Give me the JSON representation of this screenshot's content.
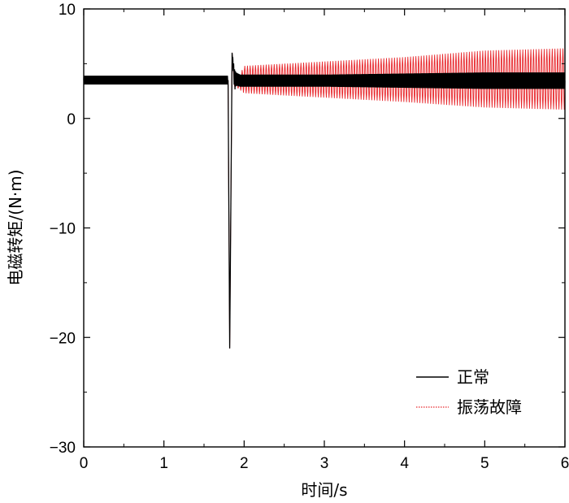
{
  "chart_data": {
    "type": "line",
    "title": "",
    "xlabel": "时间/s",
    "ylabel": "电磁转矩/(N·m)",
    "xlim": [
      0,
      6
    ],
    "ylim": [
      -30,
      10
    ],
    "xticks": [
      0,
      1,
      2,
      3,
      4,
      5,
      6
    ],
    "xtick_labels": [
      "0",
      "1",
      "2",
      "3",
      "4",
      "5",
      "6"
    ],
    "yticks": [
      -30,
      -20,
      -10,
      0,
      10
    ],
    "ytick_labels": [
      "−30",
      "−20",
      "−10",
      "0",
      "10"
    ],
    "grid": false,
    "legend_position": "bottom-right",
    "series": [
      {
        "name": "正常",
        "color": "#000000",
        "style": "solid",
        "x": [
          0,
          1.8,
          1.82,
          1.85,
          1.88,
          1.9,
          1.95,
          2.0,
          3.0,
          4.0,
          5.0,
          6.0
        ],
        "y": [
          3.5,
          3.5,
          -21.0,
          6.0,
          3.0,
          3.8,
          3.5,
          3.5,
          3.5,
          3.5,
          3.5,
          3.5
        ],
        "y_min": [
          3.1,
          3.1,
          -21.0,
          6.0,
          2.5,
          3.0,
          2.9,
          2.9,
          2.9,
          2.8,
          2.7,
          2.7
        ],
        "y_max": [
          3.9,
          3.9,
          -21.0,
          6.0,
          4.5,
          4.2,
          4.0,
          4.0,
          4.0,
          4.1,
          4.2,
          4.2
        ]
      },
      {
        "name": "振荡故障",
        "color": "#e8282d",
        "style": "dotted",
        "x": [
          1.8,
          1.82,
          1.85,
          1.88,
          2.0,
          3.0,
          4.0,
          5.0,
          6.0
        ],
        "y": [
          3.5,
          -21.0,
          6.0,
          3.0,
          3.6,
          3.6,
          3.5,
          3.5,
          3.5
        ],
        "y_min": [
          3.5,
          -21.0,
          6.0,
          3.0,
          2.3,
          1.9,
          1.5,
          1.0,
          0.8
        ],
        "y_max": [
          3.5,
          -21.0,
          6.0,
          3.0,
          4.8,
          5.2,
          5.6,
          6.2,
          6.4
        ]
      }
    ]
  }
}
